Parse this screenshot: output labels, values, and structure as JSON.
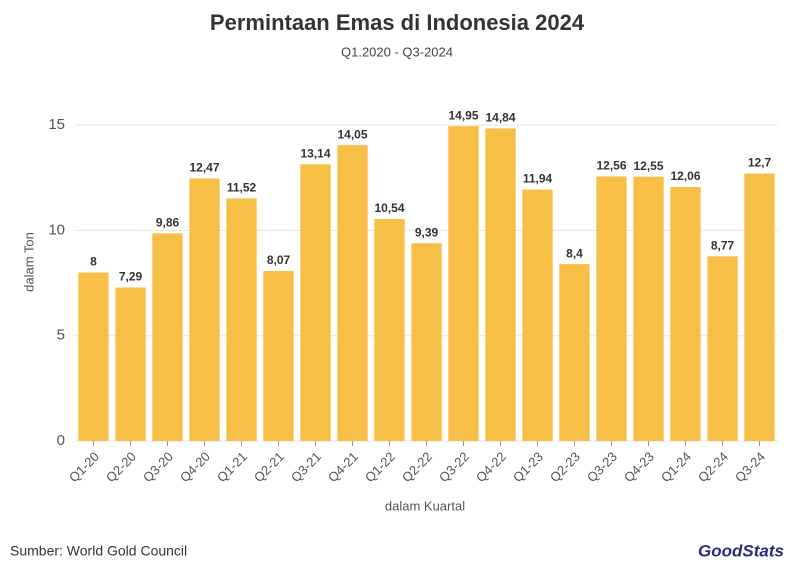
{
  "chart_data": {
    "type": "bar",
    "title": "Permintaan Emas di Indonesia 2024",
    "subtitle": "Q1.2020 - Q3-2024",
    "x_label": "dalam Kuartal",
    "y_label": "dalam Ton",
    "categories": [
      "Q1-20",
      "Q2-20",
      "Q3-20",
      "Q4-20",
      "Q1-21",
      "Q2-21",
      "Q3-21",
      "Q4-21",
      "Q1-22",
      "Q2-22",
      "Q3-22",
      "Q4-22",
      "Q1-23",
      "Q2-23",
      "Q3-23",
      "Q4-23",
      "Q1-24",
      "Q2-24",
      "Q3-24"
    ],
    "values": [
      8,
      7.29,
      9.86,
      12.47,
      11.52,
      8.07,
      13.14,
      14.05,
      10.54,
      9.39,
      14.95,
      14.84,
      11.94,
      8.4,
      12.56,
      12.55,
      12.06,
      8.77,
      12.7
    ],
    "value_labels": [
      "8",
      "7,29",
      "9,86",
      "12,47",
      "11,52",
      "8,07",
      "13,14",
      "14,05",
      "10,54",
      "9,39",
      "14,95",
      "14,84",
      "11,94",
      "8,4",
      "12,56",
      "12,55",
      "12,06",
      "8,77",
      "12,7"
    ],
    "color": "#f8bf47",
    "ylim": [
      0,
      17
    ],
    "yticks": [
      0,
      5,
      10,
      15
    ],
    "grid": true
  },
  "footer": {
    "source": "Sumber: World Gold Council",
    "logo": "GoodStats"
  }
}
